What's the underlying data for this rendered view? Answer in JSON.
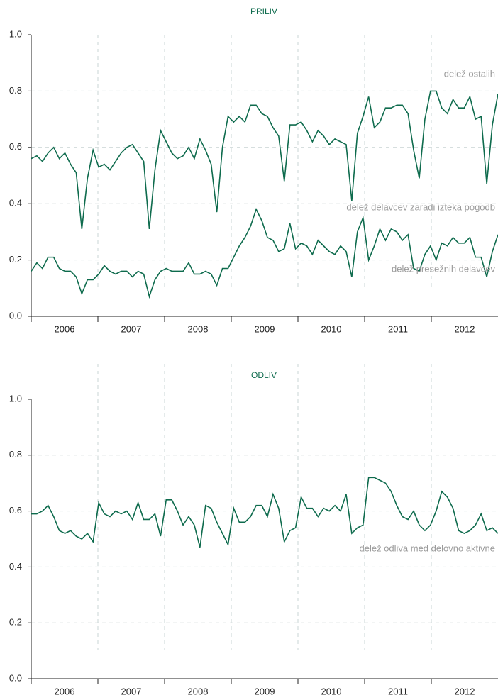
{
  "chart_data": [
    {
      "type": "area",
      "stacked": true,
      "title": "PRILIV",
      "xlim": [
        2006,
        2013
      ],
      "xticks": [
        2006,
        2007,
        2008,
        2009,
        2010,
        2011,
        2012
      ],
      "ylim": [
        0,
        1
      ],
      "yticks": [
        {
          "value": 0,
          "label": "0.0"
        },
        0.2,
        0.4,
        0.6,
        0.8,
        {
          "value": 1,
          "label": "1.0"
        }
      ],
      "grid": true,
      "series": [
        {
          "name": "delež presežnih delavcev",
          "color": "#0e6b4d",
          "values": [
            0.16,
            0.19,
            0.17,
            0.21,
            0.21,
            0.17,
            0.16,
            0.16,
            0.14,
            0.08,
            0.13,
            0.13,
            0.15,
            0.18,
            0.16,
            0.15,
            0.16,
            0.16,
            0.14,
            0.16,
            0.15,
            0.07,
            0.13,
            0.16,
            0.17,
            0.16,
            0.16,
            0.16,
            0.19,
            0.15,
            0.15,
            0.16,
            0.15,
            0.11,
            0.17,
            0.17,
            0.21,
            0.25,
            0.28,
            0.32,
            0.38,
            0.34,
            0.28,
            0.27,
            0.23,
            0.24,
            0.33,
            0.24,
            0.26,
            0.25,
            0.22,
            0.27,
            0.25,
            0.23,
            0.22,
            0.25,
            0.23,
            0.14,
            0.3,
            0.35,
            0.2,
            0.25,
            0.31,
            0.27,
            0.31,
            0.3,
            0.27,
            0.29,
            0.17,
            0.16,
            0.22,
            0.25,
            0.2,
            0.26,
            0.25,
            0.28,
            0.26,
            0.26,
            0.28,
            0.21,
            0.21,
            0.14,
            0.23,
            0.29
          ]
        },
        {
          "name": "delež delavcev zaradi izteka pogodb",
          "color": "#0e6b4d",
          "values": [
            0.4,
            0.38,
            0.38,
            0.37,
            0.39,
            0.39,
            0.42,
            0.38,
            0.37,
            0.23,
            0.36,
            0.46,
            0.38,
            0.36,
            0.36,
            0.4,
            0.42,
            0.44,
            0.47,
            0.42,
            0.4,
            0.24,
            0.39,
            0.5,
            0.45,
            0.42,
            0.4,
            0.41,
            0.41,
            0.41,
            0.48,
            0.43,
            0.39,
            0.26,
            0.43,
            0.54,
            0.48,
            0.46,
            0.41,
            0.43,
            0.37,
            0.38,
            0.43,
            0.4,
            0.41,
            0.24,
            0.35,
            0.44,
            0.43,
            0.41,
            0.4,
            0.39,
            0.39,
            0.38,
            0.41,
            0.37,
            0.38,
            0.27,
            0.35,
            0.36,
            0.58,
            0.42,
            0.38,
            0.47,
            0.43,
            0.45,
            0.48,
            0.43,
            0.42,
            0.33,
            0.48,
            0.55,
            0.6,
            0.48,
            0.47,
            0.49,
            0.48,
            0.48,
            0.5,
            0.49,
            0.5,
            0.33,
            0.45,
            0.5
          ]
        },
        {
          "name": "delež ostalih",
          "color": "#0e6b4d",
          "values": [
            0.44,
            0.43,
            0.45,
            0.42,
            0.4,
            0.44,
            0.42,
            0.46,
            0.49,
            0.69,
            0.51,
            0.41,
            0.47,
            0.46,
            0.48,
            0.45,
            0.42,
            0.4,
            0.39,
            0.42,
            0.45,
            0.69,
            0.48,
            0.34,
            0.38,
            0.42,
            0.44,
            0.43,
            0.4,
            0.44,
            0.37,
            0.41,
            0.46,
            0.63,
            0.4,
            0.29,
            0.31,
            0.29,
            0.31,
            0.25,
            0.25,
            0.28,
            0.29,
            0.33,
            0.36,
            0.52,
            0.32,
            0.32,
            0.31,
            0.34,
            0.38,
            0.34,
            0.36,
            0.39,
            0.37,
            0.38,
            0.39,
            0.59,
            0.35,
            0.29,
            0.22,
            0.33,
            0.31,
            0.26,
            0.26,
            0.25,
            0.25,
            0.28,
            0.41,
            0.51,
            0.3,
            0.2,
            0.2,
            0.26,
            0.28,
            0.23,
            0.26,
            0.26,
            0.22,
            0.3,
            0.29,
            0.53,
            0.32,
            0.21
          ]
        }
      ]
    },
    {
      "type": "line",
      "title": "ODLIV",
      "xlim": [
        2006,
        2013
      ],
      "xticks": [
        2006,
        2007,
        2008,
        2009,
        2010,
        2011,
        2012
      ],
      "ylim": [
        0,
        1
      ],
      "yticks": [
        {
          "value": 0,
          "label": "0.0"
        },
        0.2,
        0.4,
        0.6,
        0.8,
        {
          "value": 1,
          "label": "1.0"
        }
      ],
      "grid": true,
      "series": [
        {
          "name": "delež odliva med delovno aktivne",
          "color": "#0e6b4d",
          "values": [
            0.59,
            0.59,
            0.6,
            0.62,
            0.58,
            0.53,
            0.52,
            0.53,
            0.51,
            0.5,
            0.52,
            0.49,
            0.63,
            0.59,
            0.58,
            0.6,
            0.59,
            0.6,
            0.57,
            0.63,
            0.57,
            0.57,
            0.59,
            0.51,
            0.64,
            0.64,
            0.6,
            0.55,
            0.58,
            0.55,
            0.47,
            0.62,
            0.61,
            0.56,
            0.52,
            0.48,
            0.61,
            0.56,
            0.56,
            0.58,
            0.62,
            0.62,
            0.58,
            0.66,
            0.61,
            0.49,
            0.53,
            0.54,
            0.65,
            0.61,
            0.61,
            0.58,
            0.61,
            0.6,
            0.62,
            0.6,
            0.66,
            0.52,
            0.54,
            0.55,
            0.72,
            0.72,
            0.71,
            0.7,
            0.67,
            0.62,
            0.58,
            0.57,
            0.6,
            0.55,
            0.53,
            0.55,
            0.6,
            0.67,
            0.65,
            0.61,
            0.53,
            0.52,
            0.53,
            0.55,
            0.59,
            0.53,
            0.54,
            0.52
          ]
        }
      ]
    }
  ]
}
